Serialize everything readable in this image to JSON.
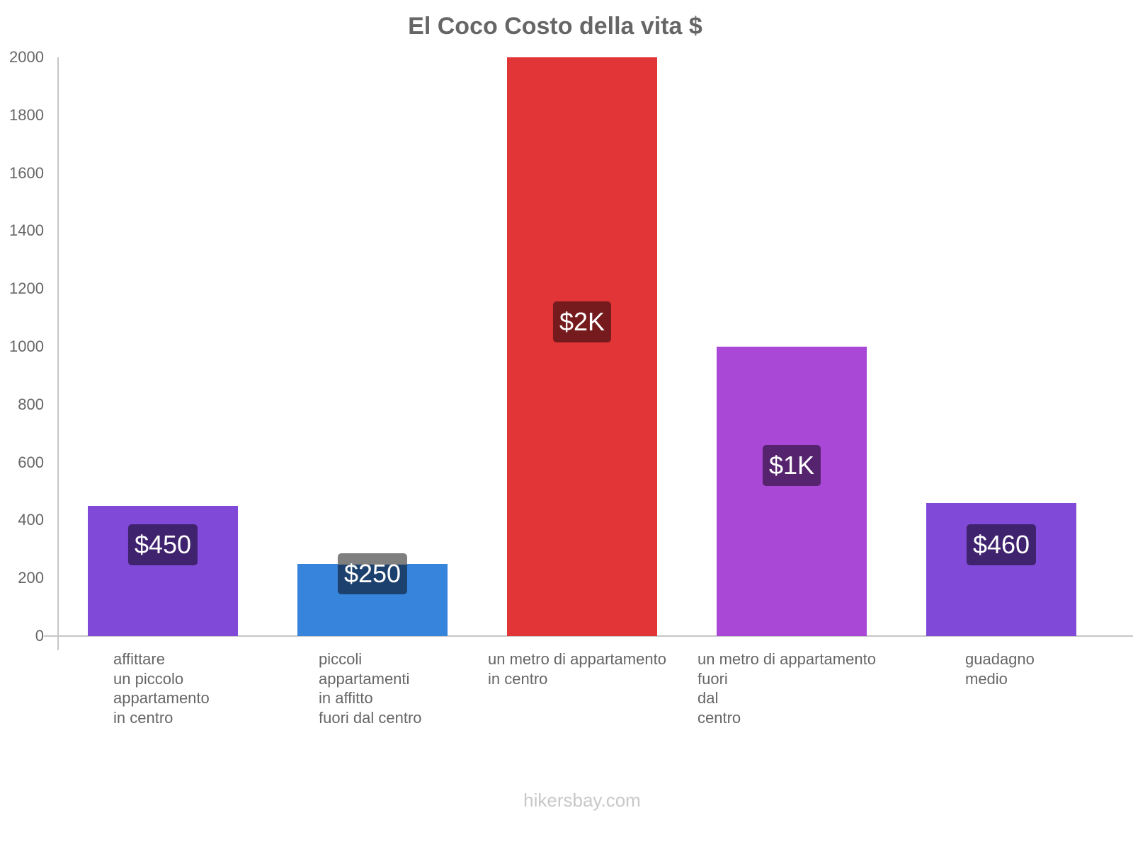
{
  "chart_data": {
    "type": "bar",
    "title": "El Coco Costo della vita $",
    "xlabel": "",
    "ylabel": "",
    "ylim": [
      0,
      2000
    ],
    "yticks": [
      0,
      200,
      400,
      600,
      800,
      1000,
      1200,
      1400,
      1600,
      1800,
      2000
    ],
    "grid": false,
    "legend": null,
    "categories": [
      "affittare un piccolo appartamento in centro",
      "piccoli appartamenti in affitto fuori dal centro",
      "un metro di appartamento in centro",
      "un metro di appartamento fuori dal centro",
      "guadagno medio"
    ],
    "category_lines": [
      [
        "affittare",
        "un piccolo",
        "appartamento",
        "in centro"
      ],
      [
        "piccoli",
        "appartamenti",
        "in affitto",
        "fuori dal centro"
      ],
      [
        "un metro di appartamento",
        "in centro"
      ],
      [
        "un metro di appartamento",
        "fuori",
        "dal",
        "centro"
      ],
      [
        "guadagno",
        "medio"
      ]
    ],
    "values": [
      450,
      250,
      2000,
      1000,
      460
    ],
    "data_labels": [
      "$450",
      "$250",
      "$2K",
      "$1K",
      "$460"
    ],
    "colors": [
      "#8049d7",
      "#3784dc",
      "#e13537",
      "#a948d7",
      "#8049d7"
    ],
    "label_colors": [
      "#40236f",
      "#1c416e",
      "#761b1d",
      "#56246f",
      "#40236f"
    ]
  },
  "watermark": "hikersbay.com"
}
